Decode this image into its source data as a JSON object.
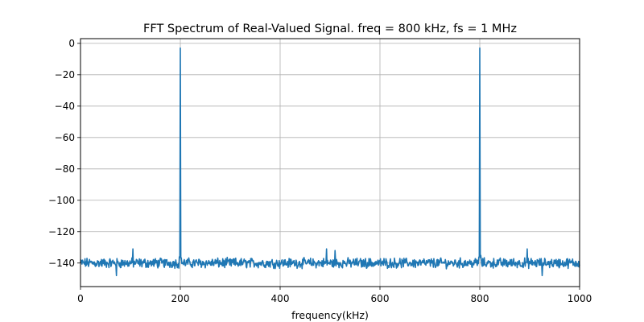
{
  "chart_data": {
    "type": "line",
    "title": "FFT Spectrum of Real-Valued Signal. freq = 800 kHz, fs = 1 MHz",
    "xlabel": "frequency(kHz)",
    "ylabel": "",
    "xlim": [
      0,
      1000
    ],
    "ylim": [
      -155,
      3
    ],
    "x_ticks": [
      0,
      200,
      400,
      600,
      800,
      1000
    ],
    "y_ticks": [
      0,
      -20,
      -40,
      -60,
      -80,
      -100,
      -120,
      -140
    ],
    "grid": true,
    "legend": "none",
    "colors": {
      "line": "#1f77b4",
      "grid": "#b0b0b0",
      "axes": "#000000"
    },
    "series": [
      {
        "noise_floor_db": -140,
        "peaks": [
          {
            "x": 200,
            "y": -3
          },
          {
            "x": 800,
            "y": -3
          }
        ],
        "notable_points": [
          {
            "x": 105,
            "y": -131
          },
          {
            "x": 493,
            "y": -131
          },
          {
            "x": 510,
            "y": -132
          },
          {
            "x": 895,
            "y": -131
          },
          {
            "x": 72,
            "y": -148
          },
          {
            "x": 925,
            "y": -148
          }
        ]
      }
    ]
  }
}
